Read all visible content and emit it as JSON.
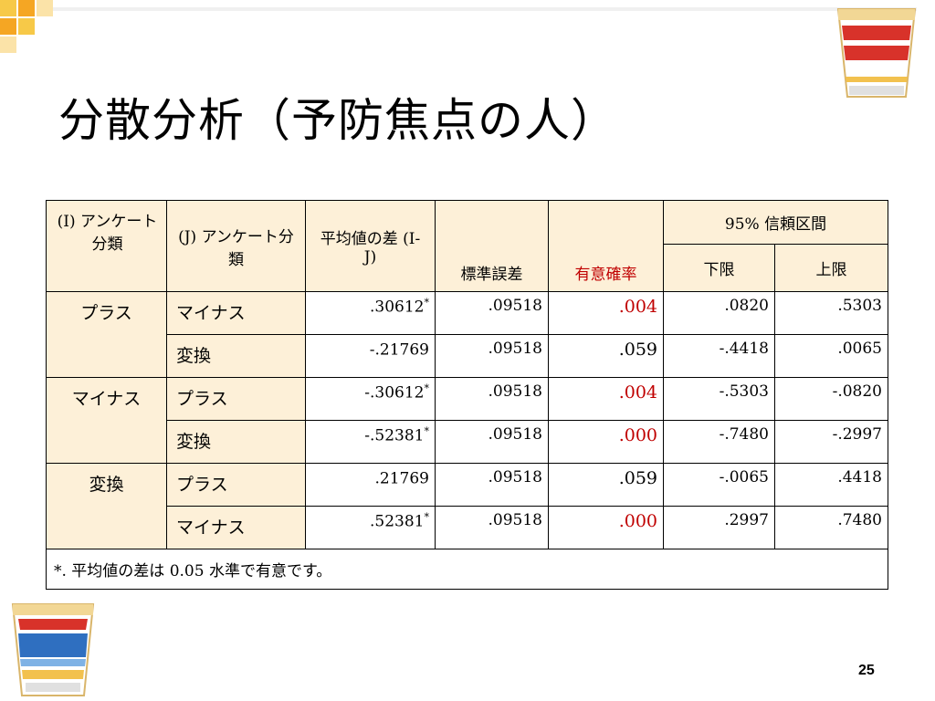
{
  "slide": {
    "title": "分散分析（予防焦点の人）",
    "page_number": "25"
  },
  "table": {
    "headers": {
      "i_group": "(I) アンケート分類",
      "j_group": "(J) アンケート分類",
      "mean_diff": "平均値の差 (I-J)",
      "std_err": "標準誤差",
      "significance": "有意確率",
      "ci": "95% 信頼区間",
      "ci_lower": "下限",
      "ci_upper": "上限"
    },
    "rows": [
      {
        "i": "プラス",
        "j": "マイナス",
        "mean_diff": ".30612",
        "star": "*",
        "std_err": ".09518",
        "sig": ".004",
        "sig_highlight": true,
        "lower": ".0820",
        "upper": ".5303"
      },
      {
        "i": "",
        "j": "変換",
        "mean_diff": "-.21769",
        "star": "",
        "std_err": ".09518",
        "sig": ".059",
        "sig_highlight": false,
        "lower": "-.4418",
        "upper": ".0065"
      },
      {
        "i": "マイナス",
        "j": "プラス",
        "mean_diff": "-.30612",
        "star": "*",
        "std_err": ".09518",
        "sig": ".004",
        "sig_highlight": true,
        "lower": "-.5303",
        "upper": "-.0820"
      },
      {
        "i": "",
        "j": "変換",
        "mean_diff": "-.52381",
        "star": "*",
        "std_err": ".09518",
        "sig": ".000",
        "sig_highlight": true,
        "lower": "-.7480",
        "upper": "-.2997"
      },
      {
        "i": "変換",
        "j": "プラス",
        "mean_diff": ".21769",
        "star": "",
        "std_err": ".09518",
        "sig": ".059",
        "sig_highlight": false,
        "lower": "-.0065",
        "upper": ".4418"
      },
      {
        "i": "",
        "j": "マイナス",
        "mean_diff": ".52381",
        "star": "*",
        "std_err": ".09518",
        "sig": ".000",
        "sig_highlight": true,
        "lower": ".2997",
        "upper": ".7480"
      }
    ],
    "footnote": "*. 平均値の差は 0.05 水準で有意です。"
  },
  "logos": {
    "top_right": "CUP NOODLE",
    "bottom_left": "CUP NOODLE SEAFOOD NOODLE"
  },
  "colors": {
    "header_bg": "#fdf0d8",
    "highlight": "#c00000",
    "corner_orange": "#f5a623",
    "corner_gold": "#f7c948"
  }
}
